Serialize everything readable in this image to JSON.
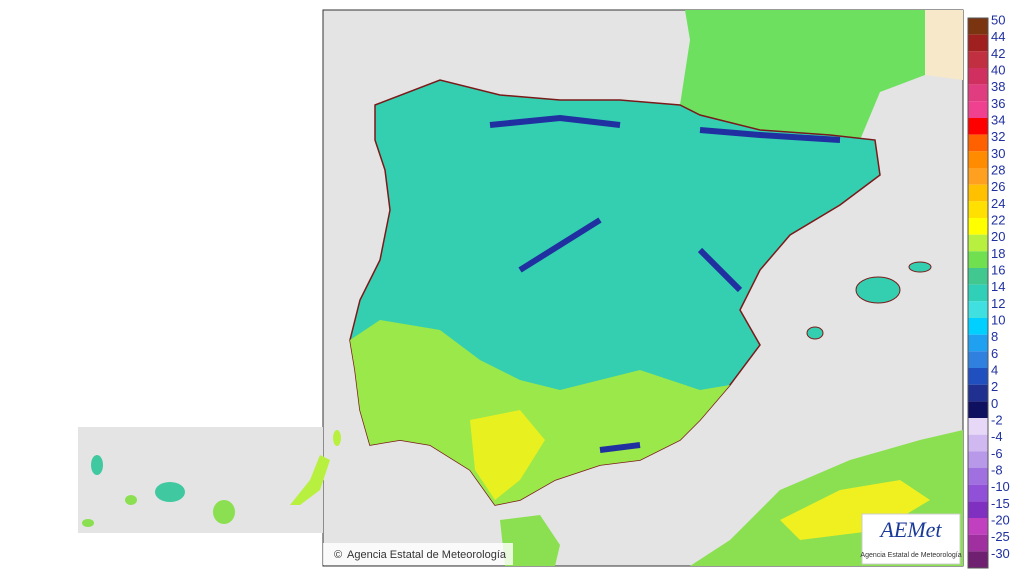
{
  "map": {
    "credit": {
      "symbol": "©",
      "text": "Agencia Estatal de Meteorología"
    },
    "logo": {
      "name": "AEMet",
      "subtitle": "Agencia Estatal de Meteorología"
    },
    "legend": {
      "items": [
        {
          "value": 50,
          "color": "#7a3510"
        },
        {
          "value": 44,
          "color": "#a02020"
        },
        {
          "value": 42,
          "color": "#c03040"
        },
        {
          "value": 40,
          "color": "#d03060"
        },
        {
          "value": 38,
          "color": "#e03c80"
        },
        {
          "value": 36,
          "color": "#f04090"
        },
        {
          "value": 34,
          "color": "#ff0000"
        },
        {
          "value": 32,
          "color": "#ff6000"
        },
        {
          "value": 30,
          "color": "#ff8c00"
        },
        {
          "value": 28,
          "color": "#ffa020"
        },
        {
          "value": 26,
          "color": "#ffc000"
        },
        {
          "value": 24,
          "color": "#ffe000"
        },
        {
          "value": 22,
          "color": "#ffff00"
        },
        {
          "value": 20,
          "color": "#b8f040"
        },
        {
          "value": 18,
          "color": "#70e050"
        },
        {
          "value": 16,
          "color": "#40c890"
        },
        {
          "value": 14,
          "color": "#30d0b8"
        },
        {
          "value": 12,
          "color": "#40e0e0"
        },
        {
          "value": 10,
          "color": "#00d0ff"
        },
        {
          "value": 8,
          "color": "#20a0f0"
        },
        {
          "value": 6,
          "color": "#3080e0"
        },
        {
          "value": 4,
          "color": "#2050c0"
        },
        {
          "value": 2,
          "color": "#203090"
        },
        {
          "value": 0,
          "color": "#101060"
        },
        {
          "value": -2,
          "color": "#e8d8f8"
        },
        {
          "value": -4,
          "color": "#d0b8f0"
        },
        {
          "value": -6,
          "color": "#b898e8"
        },
        {
          "value": -8,
          "color": "#a070e0"
        },
        {
          "value": -10,
          "color": "#9050d8"
        },
        {
          "value": -15,
          "color": "#8030c0"
        },
        {
          "value": -20,
          "color": "#c040c0"
        },
        {
          "value": -25,
          "color": "#a030a0"
        },
        {
          "value": -30,
          "color": "#702070"
        }
      ]
    }
  }
}
